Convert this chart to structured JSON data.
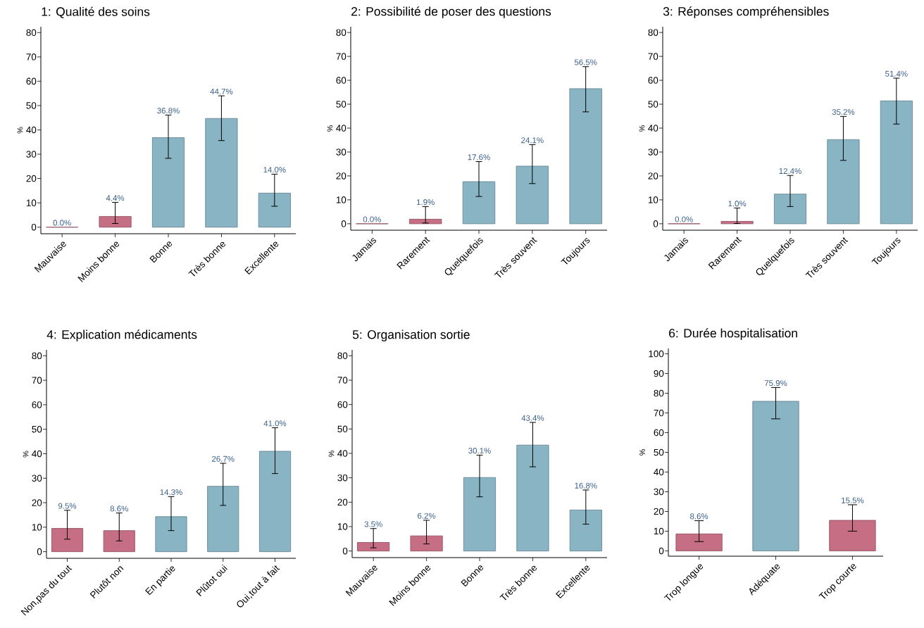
{
  "chart_data": [
    {
      "type": "bar",
      "title": "1: Qualité des soins",
      "ylabel": "%",
      "categories": [
        "Mauvaise",
        "Moins bonne",
        "Bonne",
        "Très bonne",
        "Excellente"
      ],
      "values": [
        0.0,
        4.4,
        36.8,
        44.7,
        14.0
      ],
      "colors": [
        "#c56e84",
        "#c56e84",
        "#88b4c4",
        "#88b4c4",
        "#88b4c4"
      ],
      "errors": [
        null,
        [
          1.5,
          10.2
        ],
        [
          28.3,
          46.1
        ],
        [
          35.6,
          54.0
        ],
        [
          8.6,
          21.8
        ]
      ],
      "value_labels": [
        "0.0%",
        "4.4%",
        "36.8%",
        "44.7%",
        "14.0%"
      ],
      "ylim": [
        -2.7,
        82.4
      ],
      "yticks": [
        0,
        10,
        20,
        30,
        40,
        50,
        60,
        70,
        80
      ]
    },
    {
      "type": "bar",
      "title": "2: Possibilité de poser des questions",
      "ylabel": "%",
      "categories": [
        "Jamais",
        "Rarement",
        "Quelquefois",
        "Très souvent",
        "Toujours"
      ],
      "values": [
        0.0,
        1.9,
        17.6,
        24.1,
        56.5
      ],
      "colors": [
        "#c56e84",
        "#c56e84",
        "#88b4c4",
        "#88b4c4",
        "#88b4c4"
      ],
      "errors": [
        null,
        [
          0.3,
          7.2
        ],
        [
          11.4,
          26.0
        ],
        [
          16.8,
          33.1
        ],
        [
          46.8,
          65.7
        ]
      ],
      "value_labels": [
        "0.0%",
        "1.9%",
        "17.6%",
        "24.1%",
        "56.5%"
      ],
      "ylim": [
        -2.7,
        82.4
      ],
      "yticks": [
        0,
        10,
        20,
        30,
        40,
        50,
        60,
        70,
        80
      ]
    },
    {
      "type": "bar",
      "title": "3: Réponses compréhensibles",
      "ylabel": "%",
      "categories": [
        "Jamais",
        "Rarement",
        "Quelquefois",
        "Très souvent",
        "Toujours"
      ],
      "values": [
        0.0,
        1.0,
        12.4,
        35.2,
        51.4
      ],
      "colors": [
        "#c56e84",
        "#c56e84",
        "#88b4c4",
        "#88b4c4",
        "#88b4c4"
      ],
      "errors": [
        null,
        [
          0.1,
          6.6
        ],
        [
          7.2,
          20.2
        ],
        [
          26.5,
          44.9
        ],
        [
          41.7,
          60.9
        ]
      ],
      "value_labels": [
        "0.0%",
        "1.0%",
        "12.4%",
        "35.2%",
        "51.4%"
      ],
      "ylim": [
        -2.7,
        82.4
      ],
      "yticks": [
        0,
        10,
        20,
        30,
        40,
        50,
        60,
        70,
        80
      ]
    },
    {
      "type": "bar",
      "title": "4: Explication médicaments",
      "ylabel": "%",
      "categories": [
        "Non,pas du tout",
        "Plutôt non",
        "En partie",
        "Plûtot oui",
        "Oui,tout à fait"
      ],
      "values": [
        9.5,
        8.6,
        14.3,
        26.7,
        41.0
      ],
      "colors": [
        "#c56e84",
        "#c56e84",
        "#88b4c4",
        "#88b4c4",
        "#88b4c4"
      ],
      "errors": [
        [
          5.1,
          16.9
        ],
        [
          4.4,
          15.8
        ],
        [
          8.6,
          22.5
        ],
        [
          18.9,
          36.1
        ],
        [
          31.9,
          50.6
        ]
      ],
      "value_labels": [
        "9.5%",
        "8.6%",
        "14.3%",
        "26.7%",
        "41.0%"
      ],
      "ylim": [
        -2.7,
        82.4
      ],
      "yticks": [
        0,
        10,
        20,
        30,
        40,
        50,
        60,
        70,
        80
      ]
    },
    {
      "type": "bar",
      "title": "5: Organisation sortie",
      "ylabel": "%",
      "categories": [
        "Mauvaise",
        "Moins bonne",
        "Bonne",
        "Très bonne",
        "Excellente"
      ],
      "values": [
        3.5,
        6.2,
        30.1,
        43.4,
        16.8
      ],
      "colors": [
        "#c56e84",
        "#c56e84",
        "#88b4c4",
        "#88b4c4",
        "#88b4c4"
      ],
      "errors": [
        [
          1.3,
          9.2
        ],
        [
          2.9,
          12.6
        ],
        [
          22.2,
          39.3
        ],
        [
          34.5,
          52.7
        ],
        [
          11.0,
          25.0
        ]
      ],
      "value_labels": [
        "3.5%",
        "6.2%",
        "30.1%",
        "43.4%",
        "16.8%"
      ],
      "ylim": [
        -2.7,
        82.4
      ],
      "yticks": [
        0,
        10,
        20,
        30,
        40,
        50,
        60,
        70,
        80
      ]
    },
    {
      "type": "bar",
      "title": "6: Durée hospitalisation",
      "ylabel": "%",
      "categories": [
        "Trop longue",
        "Adéquate",
        "Trop courte"
      ],
      "values": [
        8.6,
        75.9,
        15.5
      ],
      "colors": [
        "#c56e84",
        "#88b4c4",
        "#c56e84"
      ],
      "errors": [
        [
          4.7,
          15.3
        ],
        [
          67.0,
          82.9
        ],
        [
          10.0,
          23.4
        ]
      ],
      "value_labels": [
        "8.6%",
        "75.9%",
        "15.5%"
      ],
      "ylim": [
        -2.7,
        102.7
      ],
      "yticks": [
        0,
        10,
        20,
        30,
        40,
        50,
        60,
        70,
        80,
        90,
        100
      ]
    }
  ]
}
